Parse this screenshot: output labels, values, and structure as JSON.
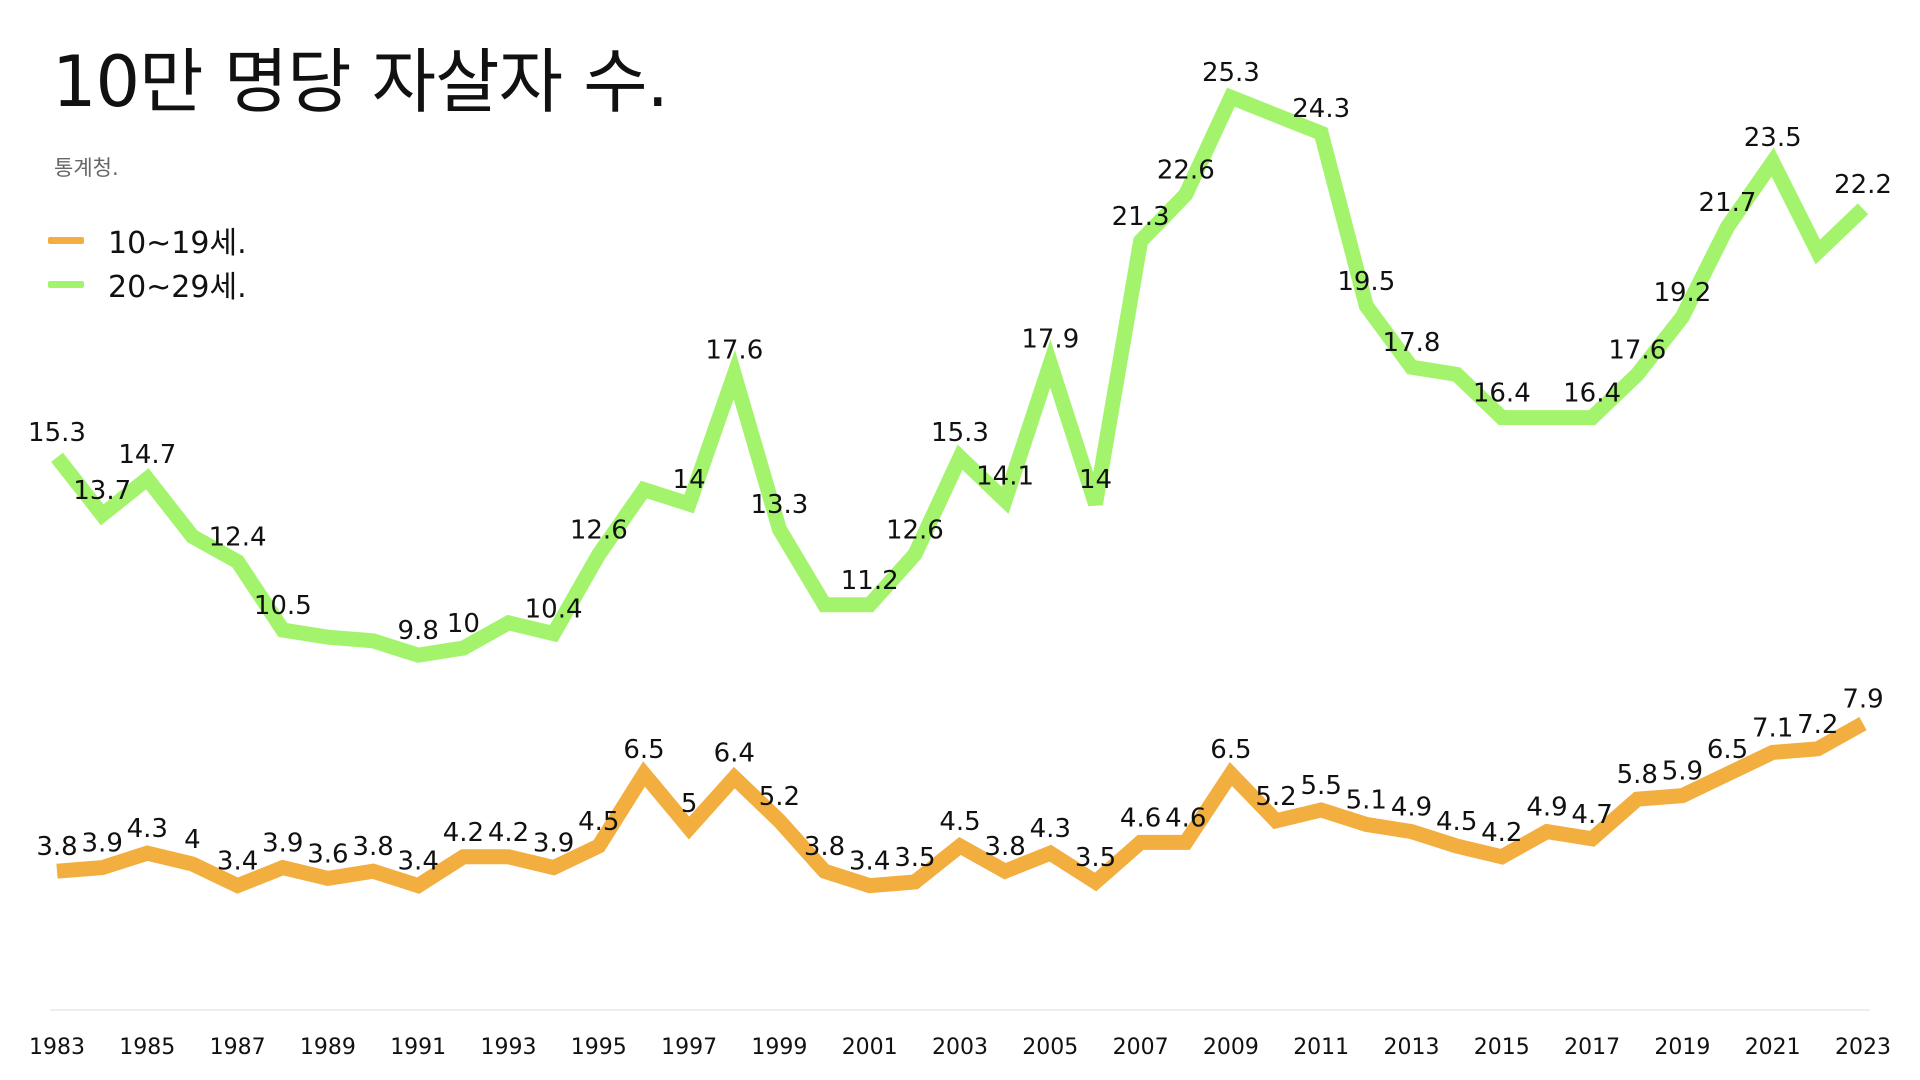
{
  "header": {
    "title": "10만 명당 자살자 수.",
    "subtitle": "통계청."
  },
  "legend": [
    {
      "label": "10~19세.",
      "color": "#F2AE3E"
    },
    {
      "label": "20~29세.",
      "color": "#A3F46C"
    }
  ],
  "chart_data": {
    "type": "line",
    "title": "10만 명당 자살자 수.",
    "subtitle": "통계청.",
    "xlabel": "",
    "ylabel": "",
    "grid": false,
    "legend_position": "top-left",
    "x": [
      1983,
      1984,
      1985,
      1986,
      1987,
      1988,
      1989,
      1990,
      1991,
      1992,
      1993,
      1994,
      1995,
      1996,
      1997,
      1998,
      1999,
      2000,
      2001,
      2002,
      2003,
      2004,
      2005,
      2006,
      2007,
      2008,
      2009,
      2010,
      2011,
      2012,
      2013,
      2014,
      2015,
      2016,
      2017,
      2018,
      2019,
      2020,
      2021,
      2022,
      2023
    ],
    "x_tick_labels": [
      "1983",
      "1985",
      "1987",
      "1989",
      "1991",
      "1993",
      "1995",
      "1997",
      "1999",
      "2001",
      "2003",
      "2005",
      "2007",
      "2009",
      "2011",
      "2013",
      "2015",
      "2017",
      "2019",
      "2021",
      "2023"
    ],
    "ylim": [
      0,
      26
    ],
    "series": [
      {
        "name": "10~19세.",
        "color": "#F2AE3E",
        "values": [
          3.8,
          3.9,
          4.3,
          4,
          3.4,
          3.9,
          3.6,
          3.8,
          3.4,
          4.2,
          4.2,
          3.9,
          4.5,
          6.5,
          5,
          6.4,
          5.2,
          3.8,
          3.4,
          3.5,
          4.5,
          3.8,
          4.3,
          3.5,
          4.6,
          4.6,
          6.5,
          5.2,
          5.5,
          5.1,
          4.9,
          4.5,
          4.2,
          4.9,
          4.7,
          5.8,
          5.9,
          6.5,
          7.1,
          7.2,
          7.9
        ],
        "labels": [
          "3.8",
          "3.9",
          "4.3",
          "4",
          "3.4",
          "3.9",
          "3.6",
          "3.8",
          "3.4",
          "4.2",
          "4.2",
          "3.9",
          "4.5",
          "6.5",
          "5",
          "6.4",
          "5.2",
          "3.8",
          "3.4",
          "3.5",
          "4.5",
          "3.8",
          "4.3",
          "3.5",
          "4.6",
          "4.6",
          "6.5",
          "5.2",
          "5.5",
          "5.1",
          "4.9",
          "4.5",
          "4.2",
          "4.9",
          "4.7",
          "5.8",
          "5.9",
          "6.5",
          "7.1",
          "7.2",
          "7.9"
        ]
      },
      {
        "name": "20~29세.",
        "color": "#A3F46C",
        "values": [
          15.3,
          13.7,
          14.7,
          13.1,
          12.4,
          10.5,
          10.3,
          10.2,
          9.8,
          10,
          10.7,
          10.4,
          12.6,
          14.4,
          14,
          17.6,
          13.3,
          11.2,
          11.2,
          12.6,
          15.3,
          14.1,
          17.9,
          14,
          21.3,
          22.6,
          25.3,
          24.8,
          24.3,
          19.5,
          17.8,
          17.6,
          16.4,
          16.4,
          16.4,
          17.6,
          19.2,
          21.7,
          23.5,
          21,
          22.2
        ],
        "labels": [
          "15.3",
          "13.7",
          "14.7",
          "",
          "12.4",
          "10.5",
          "",
          "",
          "9.8",
          "10",
          "",
          "10.4",
          "12.6",
          "",
          "14",
          "17.6",
          "13.3",
          "",
          "11.2",
          "12.6",
          "15.3",
          "14.1",
          "17.9",
          "14",
          "21.3",
          "22.6",
          "25.3",
          "",
          "24.3",
          "19.5",
          "17.8",
          "",
          "16.4",
          "",
          "16.4",
          "17.6",
          "19.2",
          "21.7",
          "23.5",
          "",
          "22.2"
        ]
      }
    ]
  }
}
